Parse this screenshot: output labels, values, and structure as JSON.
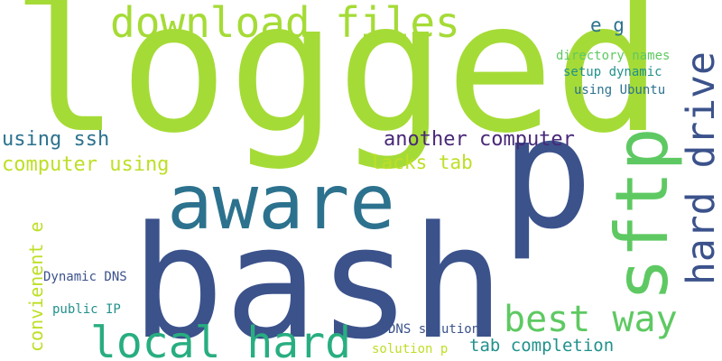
{
  "wordcloud": {
    "words": [
      "logged",
      "bash",
      "p",
      "aware",
      "sftp",
      "hard drive",
      "download files",
      "local hard",
      "best way",
      "another computer",
      "using ssh",
      "computer using",
      "lacks tab",
      "e g",
      "directory names",
      "setup dynamic",
      "using Ubuntu",
      "convienent e",
      "Dynamic DNS",
      "public IP",
      "DNS solution",
      "tab completion",
      "solution p"
    ]
  }
}
